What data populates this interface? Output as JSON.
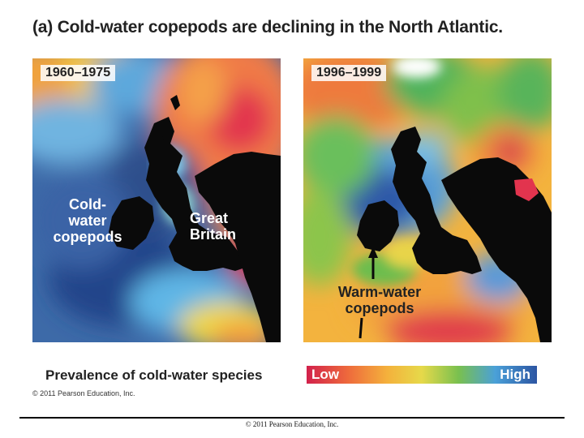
{
  "title": "(a) Cold-water copepods are declining in the North Atlantic.",
  "panels": [
    {
      "year_label": "1960–1975",
      "labels": {
        "cold_water": "Cold-\nwater\ncopepods",
        "great_britain": "Great\nBritain"
      }
    },
    {
      "year_label": "1996–1999",
      "labels": {
        "warm_water": "Warm-water\ncopepods"
      }
    }
  ],
  "legend": {
    "title": "Prevalence of cold-water species",
    "low_label": "Low",
    "high_label": "High",
    "scale_colors": [
      "#d2214b",
      "#ee6a3c",
      "#f4b13c",
      "#e6d94a",
      "#79c04f",
      "#4aa0d8",
      "#2c55a2"
    ]
  },
  "copyright_small": "© 2011 Pearson Education, Inc.",
  "copyright_bottom": "© 2011 Pearson Education, Inc."
}
